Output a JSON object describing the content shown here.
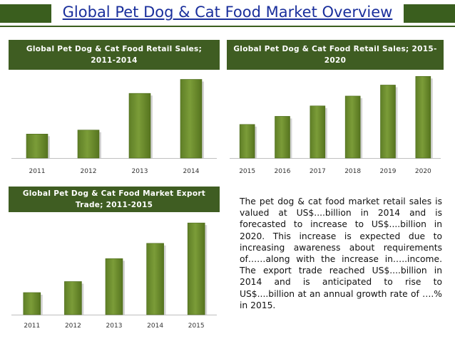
{
  "page": {
    "title": "Global Pet Dog & Cat Food Market Overview"
  },
  "colors": {
    "accent": "#3f5d22",
    "bar": "#7b9c38",
    "title": "#1a2f9c"
  },
  "chart_data": [
    {
      "type": "bar",
      "title": "Global Pet Dog & Cat Food Retail Sales; 2011-2014",
      "categories": [
        "2011",
        "2012",
        "2013",
        "2014"
      ],
      "values": [
        36,
        42,
        97,
        118
      ],
      "ylim": [
        0,
        126
      ],
      "xlabel": "",
      "ylabel": "",
      "grid": false,
      "legend": "none"
    },
    {
      "type": "bar",
      "title": "Global Pet Dog & Cat Food Retail Sales; 2015-2020",
      "categories": [
        "2015",
        "2016",
        "2017",
        "2018",
        "2019",
        "2020"
      ],
      "values": [
        58,
        72,
        90,
        107,
        126,
        141
      ],
      "ylim": [
        0,
        145
      ],
      "xlabel": "",
      "ylabel": "",
      "grid": false,
      "legend": "none"
    },
    {
      "type": "bar",
      "title": "Global Pet Dog & Cat Food Market Export Trade; 2011-2015",
      "categories": [
        "2011",
        "2012",
        "2013",
        "2014",
        "2015"
      ],
      "values": [
        26,
        39,
        66,
        84,
        108
      ],
      "ylim": [
        0,
        114
      ],
      "xlabel": "",
      "ylabel": "",
      "grid": false,
      "legend": "none"
    }
  ],
  "description": "The pet dog & cat food market retail sales is valued at US$....billion in 2014 and is forecasted to increase to US$....billion in 2020. This increase is expected due to increasing awareness about requirements of……along with the increase in…..income. The export trade reached US$....billion in 2014 and is anticipated to rise to US$....billion at an annual growth rate of ….% in 2015."
}
